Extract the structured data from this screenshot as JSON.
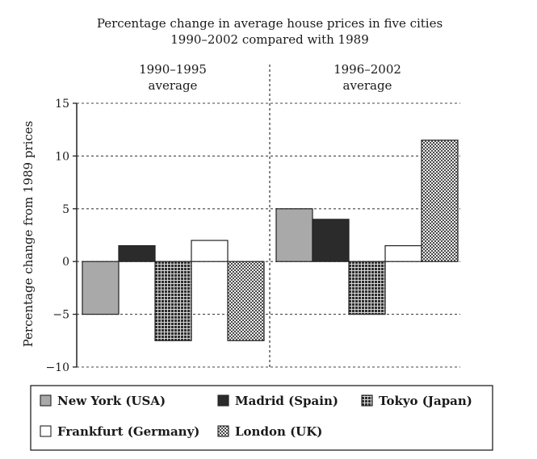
{
  "chart_data": {
    "type": "bar",
    "title_line1": "Percentage change in average house prices in five cities",
    "title_line2": "1990–2002 compared with 1989",
    "ylabel": "Percentage change from 1989 prices",
    "ylim": [
      -10,
      15
    ],
    "yticks": [
      15,
      10,
      5,
      0,
      -5,
      -10
    ],
    "ytick_labels": [
      "15",
      "10",
      "5",
      "0",
      "−5",
      "−10"
    ],
    "grid": true,
    "legend_position": "bottom",
    "groups": [
      {
        "label_line1": "1990–1995",
        "label_line2": "average"
      },
      {
        "label_line1": "1996–2002",
        "label_line2": "average"
      }
    ],
    "series": [
      {
        "name": "New York (USA)",
        "values": [
          -5,
          5
        ],
        "color": "#a9a9a9",
        "pattern": "solid-gray"
      },
      {
        "name": "Madrid (Spain)",
        "values": [
          1.5,
          4
        ],
        "color": "#2b2b2b",
        "pattern": "solid-dark"
      },
      {
        "name": "Tokyo (Japan)",
        "values": [
          -7.5,
          -5
        ],
        "color": "#3a3a3a",
        "pattern": "grid"
      },
      {
        "name": "Frankfurt (Germany)",
        "values": [
          2,
          1.5
        ],
        "color": "#ffffff",
        "pattern": "white"
      },
      {
        "name": "London (UK)",
        "values": [
          -7.5,
          11.5
        ],
        "color": "#888888",
        "pattern": "checker"
      }
    ]
  }
}
